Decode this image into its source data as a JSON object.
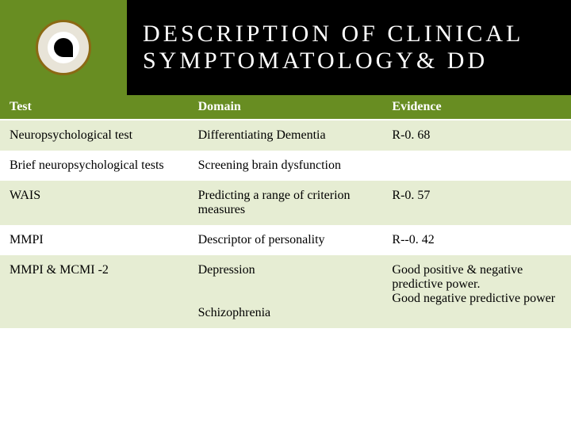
{
  "header": {
    "title_line1": "DESCRIPTION OF CLINICAL",
    "title_line2": "SYMPTOMATOLOGY& DD"
  },
  "table": {
    "columns": [
      "Test",
      "Domain",
      "Evidence"
    ],
    "rows": [
      {
        "test": "Neuropsychological test",
        "domain": "Differentiating Dementia",
        "evidence": "R-0. 68",
        "shade": "light"
      },
      {
        "test": "Brief neuropsychological tests",
        "domain": "Screening brain dysfunction",
        "evidence": "",
        "shade": "white"
      },
      {
        "test": "WAIS",
        "domain": "Predicting a range of criterion measures",
        "evidence": "R-0. 57",
        "shade": "light"
      },
      {
        "test": "MMPI",
        "domain": "Descriptor of personality",
        "evidence": "R--0. 42",
        "shade": "white"
      },
      {
        "test": "MMPI & MCMI -2",
        "domain": "Depression\n\nSchizophrenia",
        "evidence": "Good positive & negative predictive power.\nGood negative predictive power",
        "shade": "light"
      }
    ]
  },
  "colors": {
    "accent": "#688d22",
    "header_bg": "#000000",
    "row_light": "#e6edd3",
    "row_white": "#ffffff",
    "text": "#000000",
    "title_text": "#ffffff"
  }
}
